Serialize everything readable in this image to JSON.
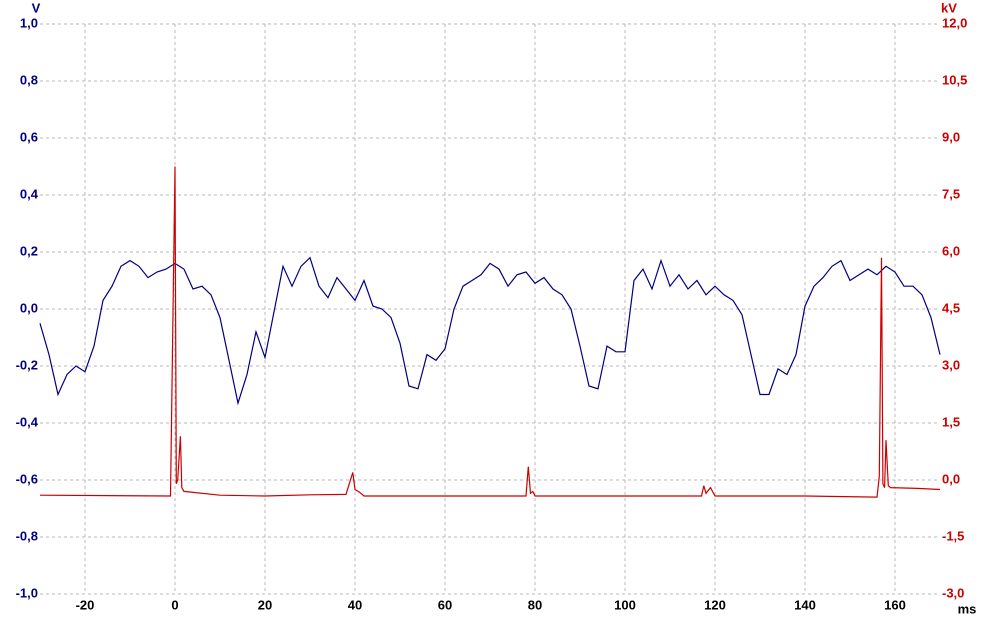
{
  "chart_data": {
    "type": "line",
    "x_label": "ms",
    "y_label": "V",
    "y2_label": "kV",
    "grid": true,
    "xlim": [
      -30,
      170
    ],
    "xticks": [
      -20,
      0,
      20,
      40,
      60,
      80,
      100,
      120,
      140,
      160
    ],
    "ylim": [
      -1,
      1
    ],
    "yticks": [
      {
        "value": -1,
        "label": "-1,0"
      },
      {
        "value": -0.8,
        "label": "-0,8"
      },
      {
        "value": -0.6,
        "label": "-0,6"
      },
      {
        "value": -0.4,
        "label": "-0,4"
      },
      {
        "value": -0.2,
        "label": "-0,2"
      },
      {
        "value": 0,
        "label": "0,0"
      },
      {
        "value": 0.2,
        "label": "0,2"
      },
      {
        "value": 0.4,
        "label": "0,4"
      },
      {
        "value": 0.6,
        "label": "0,6"
      },
      {
        "value": 0.8,
        "label": "0,8"
      },
      {
        "value": 1,
        "label": "1,0"
      }
    ],
    "y2lim": [
      -3,
      12
    ],
    "y2ticks": [
      {
        "value": -3,
        "label": "-3,0"
      },
      {
        "value": -1.5,
        "label": "-1,5"
      },
      {
        "value": 0,
        "label": "0,0"
      },
      {
        "value": 1.5,
        "label": "1,5"
      },
      {
        "value": 3,
        "label": "3,0"
      },
      {
        "value": 4.5,
        "label": "4,5"
      },
      {
        "value": 6,
        "label": "6,0"
      },
      {
        "value": 7.5,
        "label": "7,5"
      },
      {
        "value": 9,
        "label": "9,0"
      },
      {
        "value": 10.5,
        "label": "10,5"
      },
      {
        "value": 12,
        "label": "12,0"
      }
    ],
    "y_color": "#000080",
    "y2_color": "#cc0000",
    "series": [
      {
        "color": "#000080",
        "axis": "y",
        "x": [
          -30,
          -28,
          -26,
          -24,
          -22,
          -20,
          -18,
          -16,
          -14,
          -12,
          -10,
          -8,
          -6,
          -4,
          -2,
          0,
          2,
          4,
          6,
          8,
          10,
          12,
          14,
          16,
          18,
          20,
          22,
          24,
          26,
          28,
          30,
          32,
          34,
          36,
          38,
          40,
          42,
          44,
          46,
          48,
          50,
          52,
          54,
          56,
          58,
          60,
          62,
          64,
          66,
          68,
          70,
          72,
          74,
          76,
          78,
          80,
          82,
          84,
          86,
          88,
          90,
          92,
          94,
          96,
          98,
          100,
          102,
          104,
          106,
          108,
          110,
          112,
          114,
          116,
          118,
          120,
          122,
          124,
          126,
          128,
          130,
          132,
          134,
          136,
          138,
          140,
          142,
          144,
          146,
          148,
          150,
          152,
          154,
          156,
          158,
          160,
          162,
          164,
          166,
          168,
          170
        ],
        "values": [
          -0.05,
          -0.16,
          -0.3,
          -0.23,
          -0.2,
          -0.22,
          -0.13,
          0.03,
          0.08,
          0.15,
          0.17,
          0.15,
          0.11,
          0.13,
          0.14,
          0.16,
          0.14,
          0.07,
          0.08,
          0.05,
          -0.03,
          -0.18,
          -0.33,
          -0.23,
          -0.08,
          -0.17,
          -0.01,
          0.15,
          0.08,
          0.15,
          0.18,
          0.08,
          0.04,
          0.11,
          0.07,
          0.03,
          0.1,
          0.01,
          0,
          -0.03,
          -0.12,
          -0.27,
          -0.28,
          -0.16,
          -0.18,
          -0.14,
          0,
          0.08,
          0.1,
          0.12,
          0.16,
          0.14,
          0.08,
          0.12,
          0.13,
          0.09,
          0.11,
          0.07,
          0.05,
          0,
          -0.13,
          -0.27,
          -0.28,
          -0.13,
          -0.15,
          -0.15,
          0.1,
          0.14,
          0.07,
          0.17,
          0.08,
          0.12,
          0.07,
          0.1,
          0.05,
          0.08,
          0.05,
          0.03,
          -0.02,
          -0.16,
          -0.3,
          -0.3,
          -0.21,
          -0.23,
          -0.16,
          0.01,
          0.08,
          0.11,
          0.15,
          0.17,
          0.1,
          0.12,
          0.14,
          0.12,
          0.15,
          0.13,
          0.08,
          0.08,
          0.05,
          -0.03,
          -0.16
        ]
      },
      {
        "color": "#cc0000",
        "axis": "y2",
        "x": [
          -30,
          -1,
          0,
          0.3,
          0.6,
          1.2,
          1.5,
          2,
          10,
          20,
          30,
          38,
          39.5,
          40,
          41,
          42,
          60,
          78,
          78.5,
          79,
          79.5,
          80,
          100,
          117,
          117.5,
          118,
          119,
          120,
          140,
          156,
          156.5,
          157,
          157.3,
          157.7,
          158,
          158.5,
          159,
          165,
          170
        ],
        "values": [
          -0.4,
          -0.42,
          8.25,
          -0.1,
          0,
          1.15,
          -0.2,
          -0.3,
          -0.4,
          -0.42,
          -0.39,
          -0.38,
          0.2,
          -0.25,
          -0.32,
          -0.42,
          -0.42,
          -0.42,
          0.35,
          -0.35,
          -0.3,
          -0.42,
          -0.42,
          -0.42,
          -0.15,
          -0.35,
          -0.2,
          -0.42,
          -0.42,
          -0.45,
          0.1,
          5.85,
          -0.1,
          -0.2,
          1.05,
          -0.15,
          -0.2,
          -0.22,
          -0.25
        ]
      }
    ]
  }
}
